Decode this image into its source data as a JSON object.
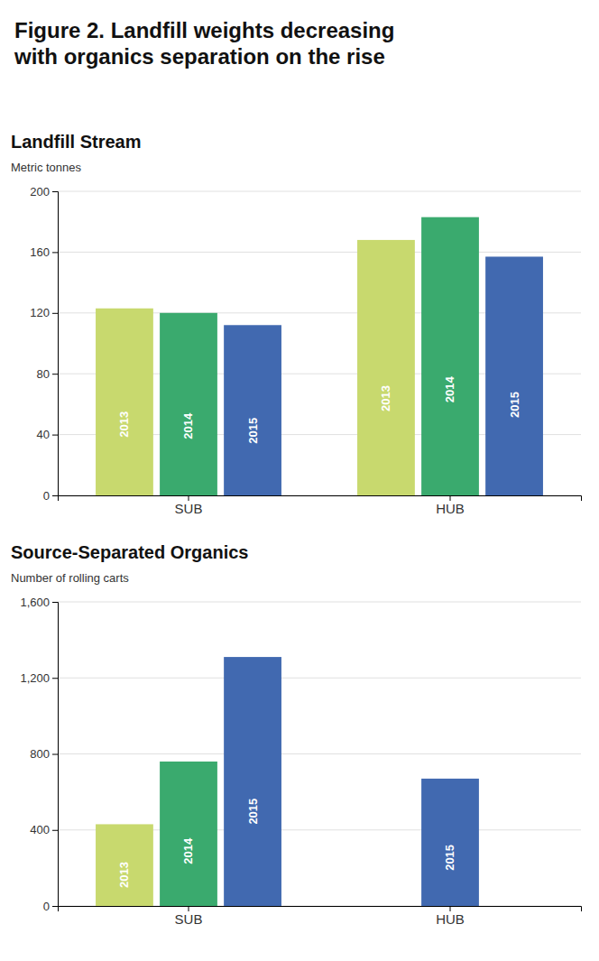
{
  "title": "Figure 2. Landfill weights decreasing\nwith organics separation on the rise",
  "chart_data": [
    {
      "type": "bar",
      "title": "Landfill Stream",
      "ylabel": "Metric tonnes",
      "categories": [
        "SUB",
        "HUB"
      ],
      "series": [
        {
          "name": "2013",
          "color": "#c8d96e",
          "values": [
            123,
            168
          ]
        },
        {
          "name": "2014",
          "color": "#3aaa6e",
          "values": [
            120,
            183
          ]
        },
        {
          "name": "2015",
          "color": "#4169b0",
          "values": [
            112,
            157
          ]
        }
      ],
      "ylim": [
        0,
        200
      ],
      "yticks": [
        0,
        40,
        80,
        120,
        160,
        200
      ],
      "grid": true
    },
    {
      "type": "bar",
      "title": "Source-Separated Organics",
      "ylabel": "Number of rolling carts",
      "categories": [
        "SUB",
        "HUB"
      ],
      "series": [
        {
          "name": "2013",
          "color": "#c8d96e",
          "values": [
            430,
            null
          ]
        },
        {
          "name": "2014",
          "color": "#3aaa6e",
          "values": [
            760,
            null
          ]
        },
        {
          "name": "2015",
          "color": "#4169b0",
          "values": [
            1310,
            670
          ]
        }
      ],
      "ylim": [
        0,
        1600
      ],
      "yticks": [
        0,
        400,
        800,
        {
          "value": 1200,
          "label": "1,200"
        },
        {
          "value": 1600,
          "label": "1,600"
        }
      ],
      "grid": true
    }
  ]
}
